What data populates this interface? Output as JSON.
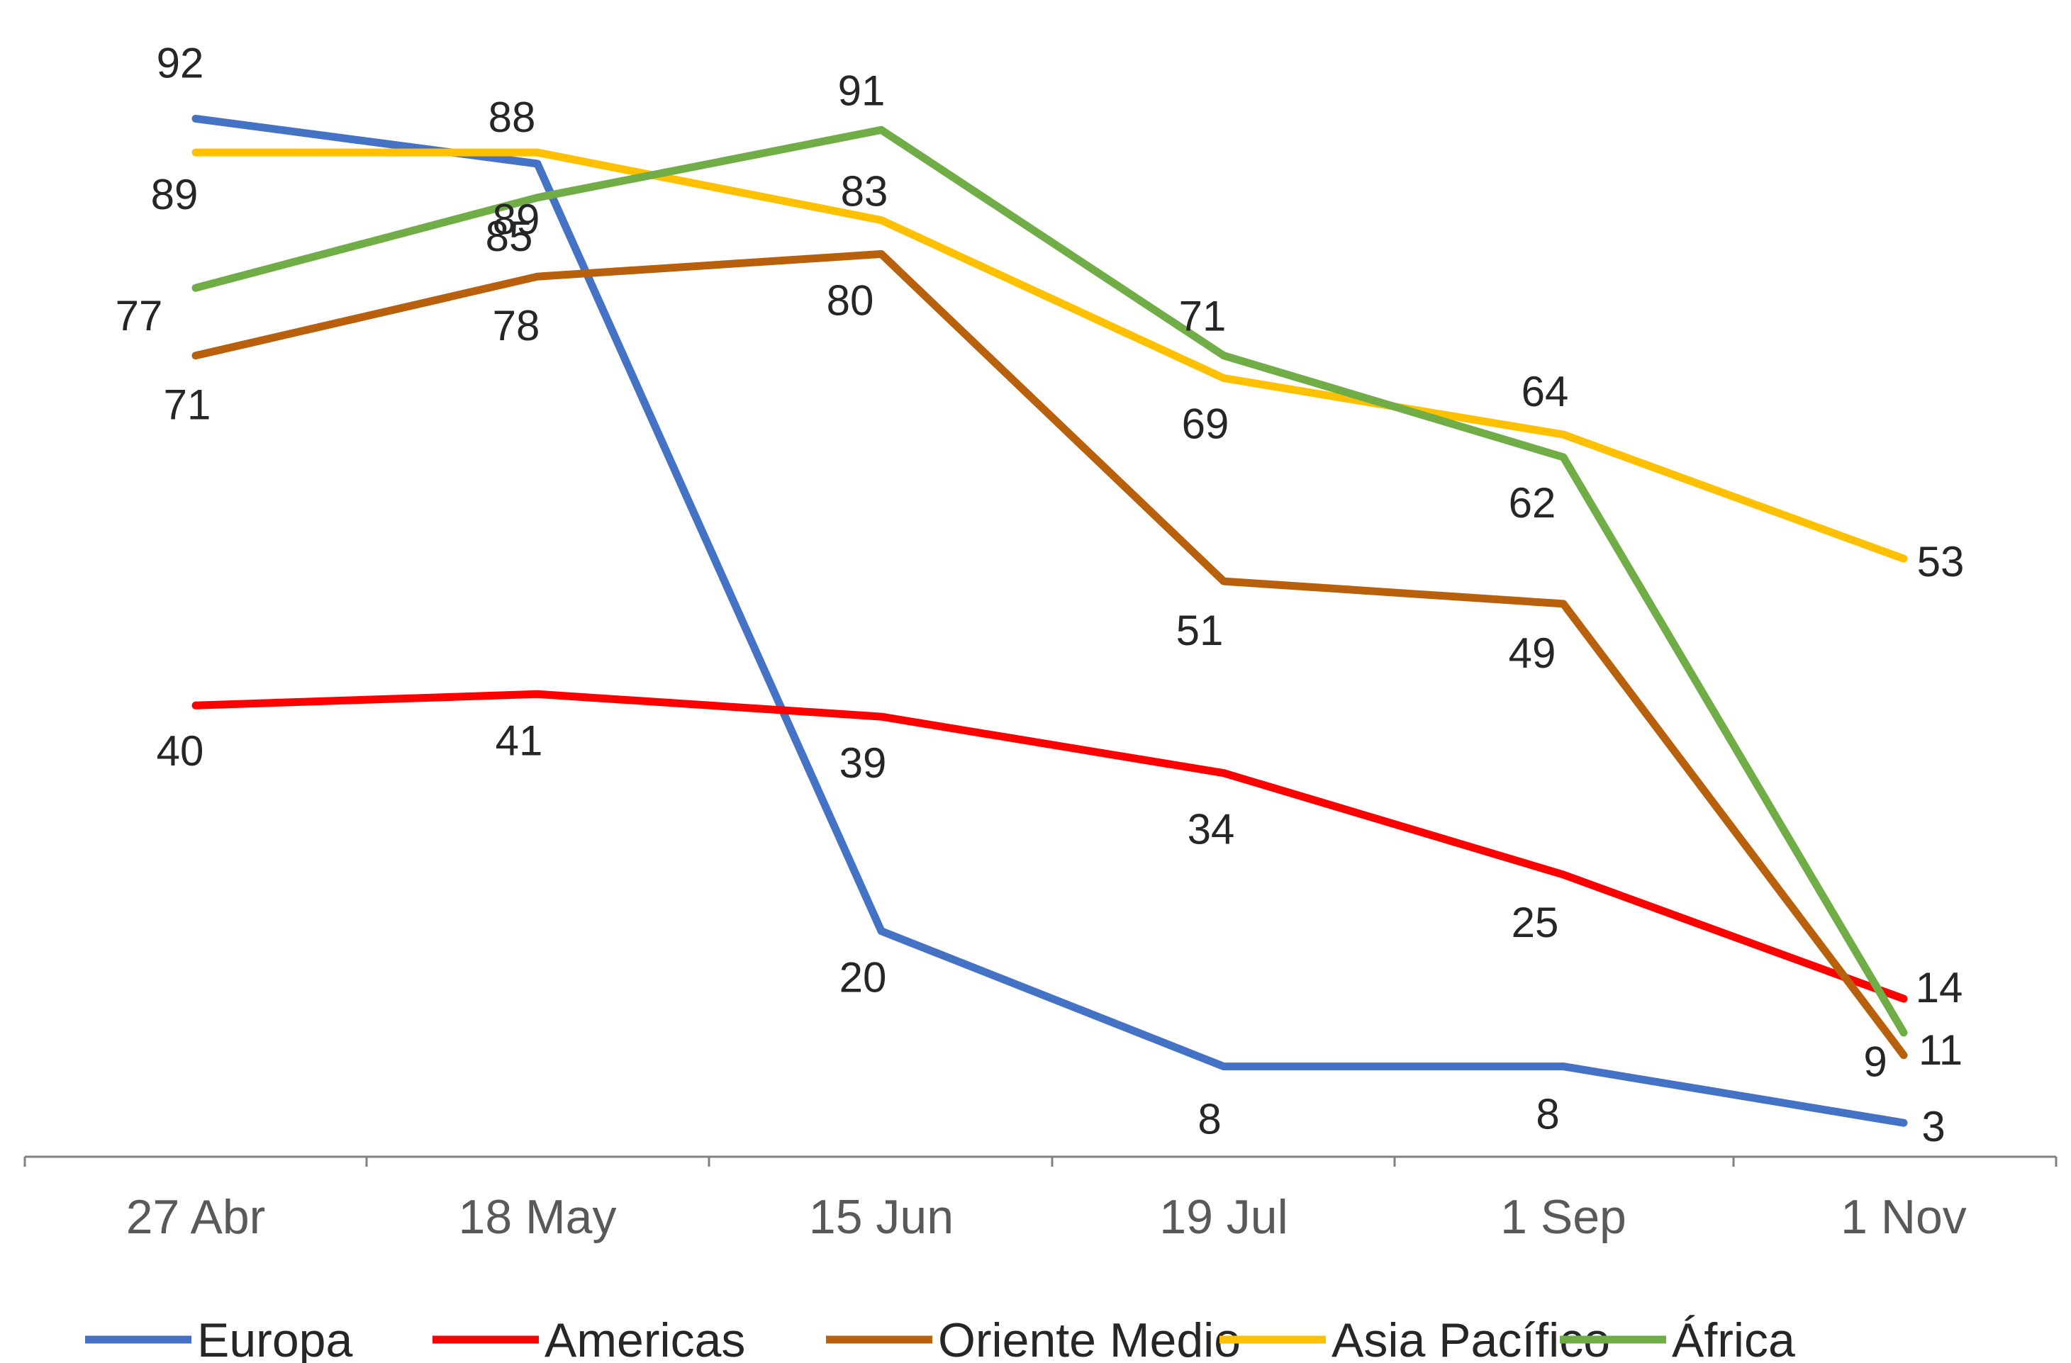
{
  "chart_data": {
    "type": "line",
    "title": "",
    "xlabel": "",
    "ylabel": "",
    "categories": [
      "27 Abr",
      "18 May",
      "15 Jun",
      "19 Jul",
      "1 Sep",
      "1 Nov"
    ],
    "ylim": [
      0,
      100
    ],
    "grid": false,
    "legend_position": "bottom",
    "series": [
      {
        "name": "Europa",
        "color": "#4472C4",
        "values": [
          92,
          88,
          20,
          8,
          8,
          3
        ]
      },
      {
        "name": "Americas",
        "color": "#FF0000",
        "values": [
          40,
          41,
          39,
          34,
          25,
          14
        ]
      },
      {
        "name": "Oriente Medio",
        "color": "#B8600B",
        "values": [
          71,
          78,
          80,
          51,
          49,
          9
        ]
      },
      {
        "name": "Asia Pacífico",
        "color": "#FFC000",
        "values": [
          89,
          89,
          83,
          69,
          64,
          53
        ]
      },
      {
        "name": "África",
        "color": "#70AD47",
        "values": [
          77,
          85,
          91,
          71,
          62,
          11
        ]
      }
    ]
  }
}
